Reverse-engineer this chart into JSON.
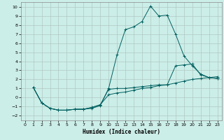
{
  "xlabel": "Humidex (Indice chaleur)",
  "ylabel": "",
  "bg_color": "#cceee8",
  "grid_color": "#b0c8c4",
  "line_color": "#006060",
  "xlim": [
    -0.5,
    23.5
  ],
  "ylim": [
    -2.5,
    10.5
  ],
  "xticks": [
    0,
    1,
    2,
    3,
    4,
    5,
    6,
    7,
    8,
    9,
    10,
    11,
    12,
    13,
    14,
    15,
    16,
    17,
    18,
    19,
    20,
    21,
    22,
    23
  ],
  "yticks": [
    -2,
    -1,
    0,
    1,
    2,
    3,
    4,
    5,
    6,
    7,
    8,
    9,
    10
  ],
  "line1_x": [
    1,
    2,
    3,
    4,
    5,
    6,
    7,
    8,
    9,
    10,
    11,
    12,
    13,
    14,
    15,
    16,
    17,
    18,
    19,
    20,
    21,
    22,
    23
  ],
  "line1_y": [
    1.1,
    -0.6,
    -1.2,
    -1.4,
    -1.4,
    -1.3,
    -1.3,
    -1.2,
    -0.9,
    1.0,
    4.7,
    7.5,
    7.8,
    8.4,
    10.1,
    9.0,
    9.1,
    7.0,
    4.6,
    3.5,
    2.6,
    2.2,
    2.1
  ],
  "line2_x": [
    1,
    2,
    3,
    4,
    5,
    6,
    7,
    8,
    9,
    10,
    11,
    12,
    13,
    14,
    15,
    16,
    17,
    18,
    19,
    20,
    21,
    22,
    23
  ],
  "line2_y": [
    1.1,
    -0.6,
    -1.2,
    -1.4,
    -1.4,
    -1.3,
    -1.3,
    -1.1,
    -0.8,
    0.9,
    1.0,
    1.0,
    1.1,
    1.2,
    1.3,
    1.4,
    1.4,
    3.5,
    3.6,
    3.7,
    2.5,
    2.2,
    2.1
  ],
  "line3_x": [
    1,
    2,
    3,
    4,
    5,
    6,
    7,
    8,
    9,
    10,
    11,
    12,
    13,
    14,
    15,
    16,
    17,
    18,
    19,
    20,
    21,
    22,
    23
  ],
  "line3_y": [
    1.1,
    -0.6,
    -1.2,
    -1.4,
    -1.4,
    -1.3,
    -1.3,
    -1.1,
    -0.8,
    0.3,
    0.5,
    0.6,
    0.8,
    1.0,
    1.1,
    1.3,
    1.4,
    1.6,
    1.8,
    2.0,
    2.1,
    2.2,
    2.3
  ],
  "xlabel_fontsize": 5.5,
  "tick_fontsize": 4.5,
  "linewidth": 0.7,
  "markersize": 2.5,
  "marker": "+"
}
